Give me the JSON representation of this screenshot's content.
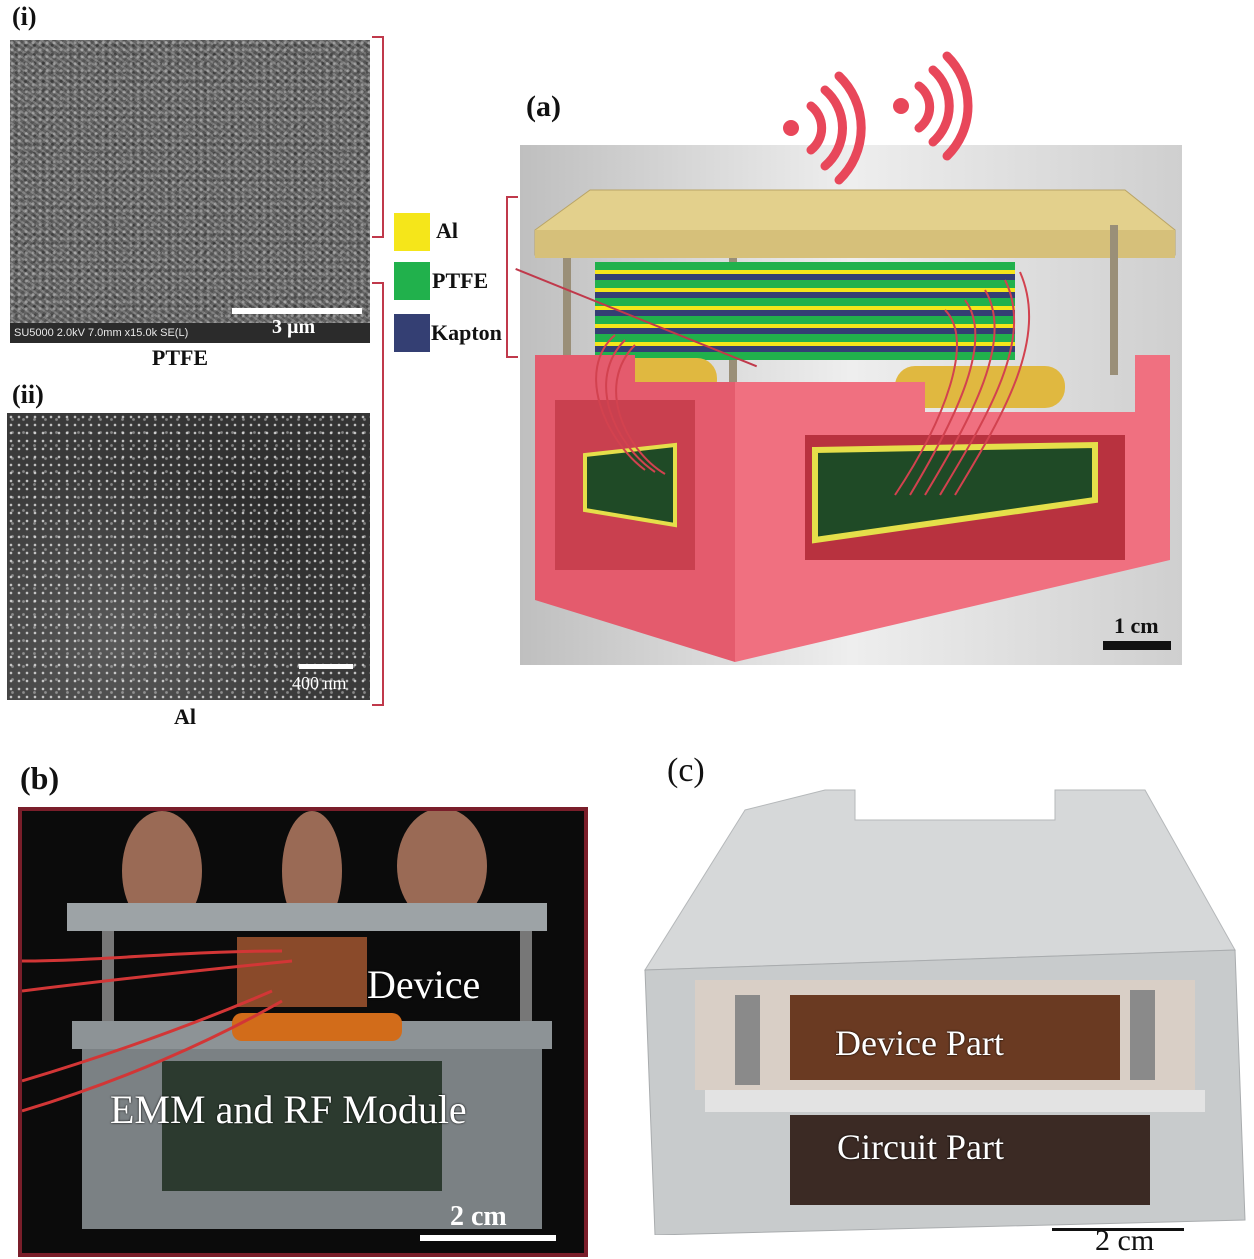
{
  "panels": {
    "i": {
      "label": "(i)",
      "caption": "PTFE",
      "sem_info": "SU5000 2.0kV 7.0mm x15.0k SE(L)",
      "scale": "3 µm"
    },
    "ii": {
      "label": "(ii)",
      "caption": "Al",
      "scale": "400 nm"
    },
    "a": {
      "label": "(a)",
      "scale": "1 cm"
    },
    "b": {
      "label": "(b)",
      "device": "Device",
      "module": "EMM and RF Module",
      "scale": "2 cm"
    },
    "c": {
      "label": "(c)",
      "device": "Device Part",
      "circuit": "Circuit Part",
      "scale": "2 cm"
    }
  },
  "legend": [
    {
      "name": "Al",
      "color": "#f5e61a"
    },
    {
      "name": "PTFE",
      "color": "#21b14c"
    },
    {
      "name": "Kapton",
      "color": "#343f73"
    }
  ],
  "colors": {
    "accent": "#c0394b",
    "housing": "#e8586b",
    "plate": "#e3d08c",
    "wireless": "#e8475a"
  }
}
